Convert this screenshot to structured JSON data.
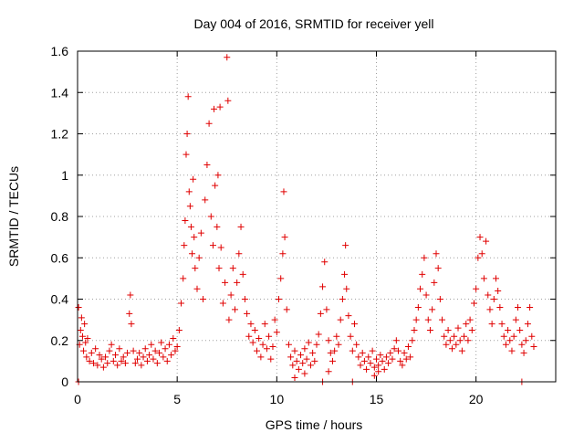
{
  "chart_data": {
    "type": "scatter",
    "title": "Day 004 of 2016, SRMTID for receiver yell",
    "xlabel": "GPS time / hours",
    "ylabel": "SRMTID / TECUs",
    "xlim": [
      0,
      24
    ],
    "ylim": [
      0,
      1.6
    ],
    "xticks": [
      0,
      5,
      10,
      15,
      20
    ],
    "xtick_labels": [
      "0",
      "5",
      "10",
      "15",
      "20"
    ],
    "yticks": [
      0,
      0.2,
      0.4,
      0.6,
      0.8,
      1.0,
      1.2,
      1.4,
      1.6
    ],
    "ytick_labels": [
      "0",
      "0.2",
      "0.4",
      "0.6",
      "0.8",
      "1",
      "1.2",
      "1.4",
      "1.6"
    ],
    "grid": true,
    "marker": "+",
    "color": "#e00000",
    "series": [
      {
        "name": "SRMTID",
        "points": [
          [
            0.05,
            0.36
          ],
          [
            0.1,
            0.18
          ],
          [
            0.15,
            0.25
          ],
          [
            0.2,
            0.31
          ],
          [
            0.25,
            0.22
          ],
          [
            0.3,
            0.15
          ],
          [
            0.35,
            0.28
          ],
          [
            0.4,
            0.19
          ],
          [
            0.45,
            0.12
          ],
          [
            0.5,
            0.21
          ],
          [
            0.6,
            0.1
          ],
          [
            0.7,
            0.14
          ],
          [
            0.8,
            0.09
          ],
          [
            0.9,
            0.16
          ],
          [
            1.0,
            0.08
          ],
          [
            1.1,
            0.13
          ],
          [
            1.2,
            0.11
          ],
          [
            1.3,
            0.07
          ],
          [
            1.4,
            0.12
          ],
          [
            1.5,
            0.09
          ],
          [
            1.6,
            0.15
          ],
          [
            1.7,
            0.18
          ],
          [
            1.8,
            0.1
          ],
          [
            1.9,
            0.13
          ],
          [
            2.0,
            0.08
          ],
          [
            2.1,
            0.16
          ],
          [
            2.2,
            0.1
          ],
          [
            2.3,
            0.12
          ],
          [
            2.4,
            0.09
          ],
          [
            2.5,
            0.14
          ],
          [
            2.6,
            0.33
          ],
          [
            2.65,
            0.42
          ],
          [
            2.7,
            0.28
          ],
          [
            2.8,
            0.15
          ],
          [
            2.9,
            0.09
          ],
          [
            3.0,
            0.11
          ],
          [
            3.1,
            0.14
          ],
          [
            3.2,
            0.08
          ],
          [
            3.3,
            0.12
          ],
          [
            3.4,
            0.16
          ],
          [
            3.5,
            0.1
          ],
          [
            3.6,
            0.13
          ],
          [
            3.7,
            0.18
          ],
          [
            3.8,
            0.11
          ],
          [
            3.9,
            0.15
          ],
          [
            4.0,
            0.09
          ],
          [
            4.1,
            0.14
          ],
          [
            4.2,
            0.19
          ],
          [
            4.3,
            0.12
          ],
          [
            4.4,
            0.16
          ],
          [
            4.5,
            0.1
          ],
          [
            4.6,
            0.18
          ],
          [
            4.7,
            0.13
          ],
          [
            4.8,
            0.21
          ],
          [
            4.9,
            0.15
          ],
          [
            5.0,
            0.17
          ],
          [
            5.1,
            0.25
          ],
          [
            5.2,
            0.38
          ],
          [
            5.3,
            0.5
          ],
          [
            5.35,
            0.66
          ],
          [
            5.4,
            0.78
          ],
          [
            5.45,
            1.1
          ],
          [
            5.5,
            1.2
          ],
          [
            5.55,
            1.38
          ],
          [
            5.6,
            0.92
          ],
          [
            5.65,
            0.85
          ],
          [
            5.7,
            0.75
          ],
          [
            5.75,
            0.62
          ],
          [
            5.8,
            0.98
          ],
          [
            5.85,
            0.7
          ],
          [
            5.9,
            0.55
          ],
          [
            6.0,
            0.45
          ],
          [
            6.1,
            0.6
          ],
          [
            6.2,
            0.72
          ],
          [
            6.3,
            0.4
          ],
          [
            6.4,
            0.88
          ],
          [
            6.5,
            1.05
          ],
          [
            6.6,
            1.25
          ],
          [
            6.7,
            0.8
          ],
          [
            6.8,
            0.66
          ],
          [
            6.85,
            1.32
          ],
          [
            6.9,
            0.95
          ],
          [
            7.0,
            0.75
          ],
          [
            7.05,
            1.0
          ],
          [
            7.1,
            0.55
          ],
          [
            7.15,
            1.33
          ],
          [
            7.2,
            0.65
          ],
          [
            7.3,
            0.38
          ],
          [
            7.4,
            0.48
          ],
          [
            7.5,
            1.57
          ],
          [
            7.55,
            1.36
          ],
          [
            7.6,
            0.3
          ],
          [
            7.7,
            0.42
          ],
          [
            7.8,
            0.55
          ],
          [
            7.9,
            0.35
          ],
          [
            8.0,
            0.48
          ],
          [
            8.1,
            0.62
          ],
          [
            8.2,
            0.75
          ],
          [
            8.3,
            0.52
          ],
          [
            8.4,
            0.4
          ],
          [
            8.5,
            0.33
          ],
          [
            8.6,
            0.22
          ],
          [
            8.7,
            0.28
          ],
          [
            8.8,
            0.19
          ],
          [
            8.9,
            0.25
          ],
          [
            9.0,
            0.15
          ],
          [
            9.1,
            0.21
          ],
          [
            9.2,
            0.12
          ],
          [
            9.3,
            0.18
          ],
          [
            9.4,
            0.28
          ],
          [
            9.5,
            0.16
          ],
          [
            9.6,
            0.22
          ],
          [
            9.7,
            0.11
          ],
          [
            9.8,
            0.17
          ],
          [
            9.9,
            0.3
          ],
          [
            10.0,
            0.24
          ],
          [
            10.1,
            0.4
          ],
          [
            10.2,
            0.5
          ],
          [
            10.3,
            0.62
          ],
          [
            10.35,
            0.92
          ],
          [
            10.4,
            0.7
          ],
          [
            10.5,
            0.35
          ],
          [
            10.6,
            0.18
          ],
          [
            10.7,
            0.12
          ],
          [
            10.8,
            0.08
          ],
          [
            10.9,
            0.15
          ],
          [
            11.0,
            0.1
          ],
          [
            11.1,
            0.06
          ],
          [
            11.2,
            0.13
          ],
          [
            11.3,
            0.09
          ],
          [
            11.4,
            0.16
          ],
          [
            11.5,
            0.11
          ],
          [
            11.6,
            0.19
          ],
          [
            11.7,
            0.08
          ],
          [
            11.8,
            0.14
          ],
          [
            11.9,
            0.1
          ],
          [
            12.0,
            0.18
          ],
          [
            12.1,
            0.23
          ],
          [
            12.2,
            0.33
          ],
          [
            12.3,
            0.46
          ],
          [
            12.4,
            0.58
          ],
          [
            12.5,
            0.35
          ],
          [
            12.6,
            0.2
          ],
          [
            12.7,
            0.14
          ],
          [
            12.8,
            0.1
          ],
          [
            12.9,
            0.15
          ],
          [
            13.0,
            0.22
          ],
          [
            13.1,
            0.18
          ],
          [
            13.2,
            0.3
          ],
          [
            13.3,
            0.4
          ],
          [
            13.4,
            0.52
          ],
          [
            13.45,
            0.66
          ],
          [
            13.5,
            0.45
          ],
          [
            13.6,
            0.32
          ],
          [
            13.7,
            0.22
          ],
          [
            13.8,
            0.15
          ],
          [
            13.9,
            0.28
          ],
          [
            14.0,
            0.18
          ],
          [
            14.1,
            0.12
          ],
          [
            14.2,
            0.08
          ],
          [
            14.3,
            0.14
          ],
          [
            14.4,
            0.1
          ],
          [
            14.5,
            0.06
          ],
          [
            14.6,
            0.12
          ],
          [
            14.7,
            0.09
          ],
          [
            14.8,
            0.15
          ],
          [
            14.9,
            0.07
          ],
          [
            15.0,
            0.11
          ],
          [
            15.1,
            0.08
          ],
          [
            15.2,
            0.13
          ],
          [
            15.3,
            0.1
          ],
          [
            15.4,
            0.06
          ],
          [
            15.5,
            0.12
          ],
          [
            15.6,
            0.09
          ],
          [
            15.7,
            0.14
          ],
          [
            15.8,
            0.11
          ],
          [
            15.9,
            0.16
          ],
          [
            16.0,
            0.2
          ],
          [
            16.1,
            0.15
          ],
          [
            16.2,
            0.1
          ],
          [
            16.3,
            0.08
          ],
          [
            16.4,
            0.14
          ],
          [
            16.5,
            0.11
          ],
          [
            16.6,
            0.17
          ],
          [
            16.7,
            0.12
          ],
          [
            16.8,
            0.2
          ],
          [
            16.9,
            0.25
          ],
          [
            17.0,
            0.3
          ],
          [
            17.1,
            0.36
          ],
          [
            17.2,
            0.45
          ],
          [
            17.3,
            0.52
          ],
          [
            17.4,
            0.6
          ],
          [
            17.5,
            0.42
          ],
          [
            17.6,
            0.3
          ],
          [
            17.7,
            0.25
          ],
          [
            17.8,
            0.35
          ],
          [
            17.9,
            0.48
          ],
          [
            18.0,
            0.62
          ],
          [
            18.1,
            0.55
          ],
          [
            18.2,
            0.4
          ],
          [
            18.3,
            0.3
          ],
          [
            18.4,
            0.22
          ],
          [
            18.5,
            0.18
          ],
          [
            18.6,
            0.25
          ],
          [
            18.7,
            0.2
          ],
          [
            18.8,
            0.16
          ],
          [
            18.9,
            0.22
          ],
          [
            19.0,
            0.18
          ],
          [
            19.1,
            0.26
          ],
          [
            19.2,
            0.2
          ],
          [
            19.3,
            0.15
          ],
          [
            19.4,
            0.22
          ],
          [
            19.5,
            0.28
          ],
          [
            19.6,
            0.2
          ],
          [
            19.7,
            0.3
          ],
          [
            19.8,
            0.25
          ],
          [
            19.9,
            0.38
          ],
          [
            20.0,
            0.45
          ],
          [
            20.1,
            0.6
          ],
          [
            20.2,
            0.7
          ],
          [
            20.3,
            0.62
          ],
          [
            20.4,
            0.5
          ],
          [
            20.5,
            0.68
          ],
          [
            20.6,
            0.42
          ],
          [
            20.7,
            0.35
          ],
          [
            20.8,
            0.28
          ],
          [
            20.9,
            0.4
          ],
          [
            21.0,
            0.5
          ],
          [
            21.1,
            0.44
          ],
          [
            21.2,
            0.36
          ],
          [
            21.3,
            0.28
          ],
          [
            21.4,
            0.22
          ],
          [
            21.5,
            0.18
          ],
          [
            21.6,
            0.25
          ],
          [
            21.7,
            0.2
          ],
          [
            21.8,
            0.15
          ],
          [
            21.9,
            0.22
          ],
          [
            22.0,
            0.3
          ],
          [
            22.1,
            0.36
          ],
          [
            22.2,
            0.25
          ],
          [
            22.3,
            0.18
          ],
          [
            22.4,
            0.14
          ],
          [
            22.5,
            0.2
          ],
          [
            22.6,
            0.28
          ],
          [
            22.7,
            0.36
          ],
          [
            22.8,
            0.22
          ],
          [
            22.9,
            0.17
          ],
          [
            12.3,
            0.0
          ],
          [
            13.8,
            0.0
          ],
          [
            0.05,
            0.0
          ],
          [
            22.3,
            0.0
          ],
          [
            12.6,
            0.05
          ],
          [
            10.9,
            0.02
          ],
          [
            14.9,
            0.03
          ],
          [
            11.4,
            0.04
          ],
          [
            15.1,
            0.05
          ]
        ]
      }
    ]
  }
}
